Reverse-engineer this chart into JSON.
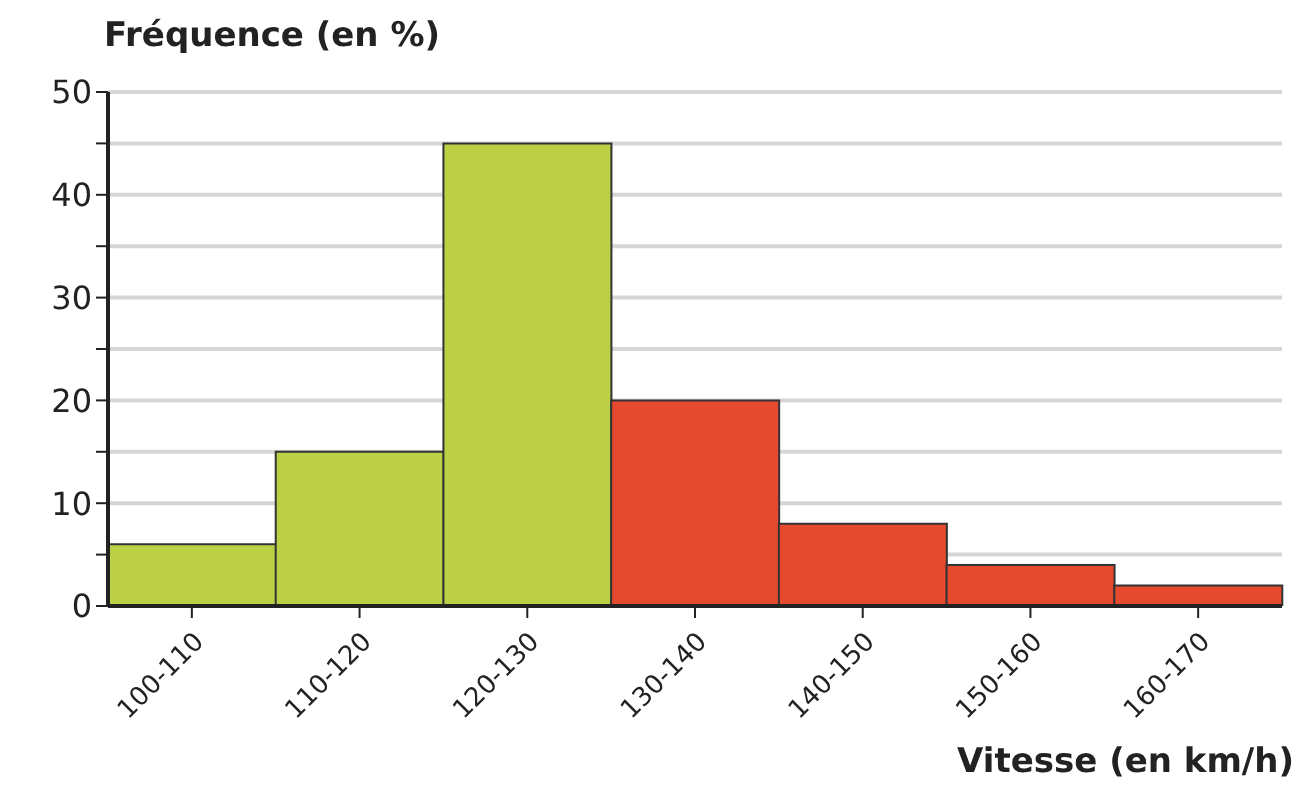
{
  "chart_data": {
    "type": "bar",
    "xlabel": "Vitesse (en km/h)",
    "ylabel": "Fréquence (en %)",
    "categories": [
      "100-110",
      "110-120",
      "120-130",
      "130-140",
      "140-150",
      "150-160",
      "160-170"
    ],
    "values": [
      6,
      15,
      45,
      20,
      8,
      4,
      2
    ],
    "colors": [
      "#bcd046",
      "#bcd046",
      "#bcd046",
      "#e64a2e",
      "#e64a2e",
      "#e64a2e",
      "#e64a2e"
    ],
    "ylim": [
      0,
      50
    ],
    "yticks": [
      0,
      {
        "value": 5,
        "label": null
      },
      10,
      {
        "value": 15,
        "label": null
      },
      20,
      {
        "value": 25,
        "label": null
      },
      30,
      {
        "value": 35,
        "label": null
      },
      40,
      {
        "value": 45,
        "label": null
      },
      50
    ],
    "grid": "y"
  }
}
